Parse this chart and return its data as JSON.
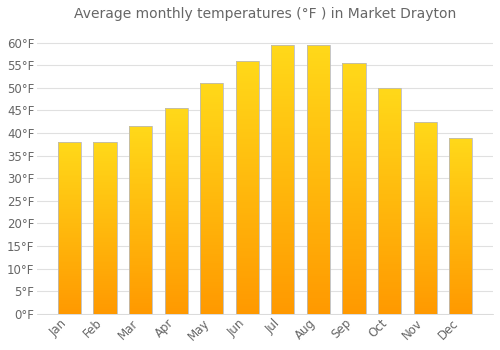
{
  "title": "Average monthly temperatures (°F ) in Market Drayton",
  "months": [
    "Jan",
    "Feb",
    "Mar",
    "Apr",
    "May",
    "Jun",
    "Jul",
    "Aug",
    "Sep",
    "Oct",
    "Nov",
    "Dec"
  ],
  "values": [
    38,
    38,
    41.5,
    45.5,
    51,
    56,
    59.5,
    59.5,
    55.5,
    50,
    42.5,
    39
  ],
  "bar_color_top": "#FFB300",
  "bar_color_bottom": "#FF9800",
  "bar_edge_color": "#BBBBBB",
  "background_color": "#FFFFFF",
  "plot_bg_color": "#FFFFFF",
  "grid_color": "#E0E0E0",
  "text_color": "#666666",
  "ylim": [
    0,
    63
  ],
  "yticks": [
    0,
    5,
    10,
    15,
    20,
    25,
    30,
    35,
    40,
    45,
    50,
    55,
    60
  ],
  "title_fontsize": 10,
  "tick_fontsize": 8.5,
  "bar_width": 0.65
}
